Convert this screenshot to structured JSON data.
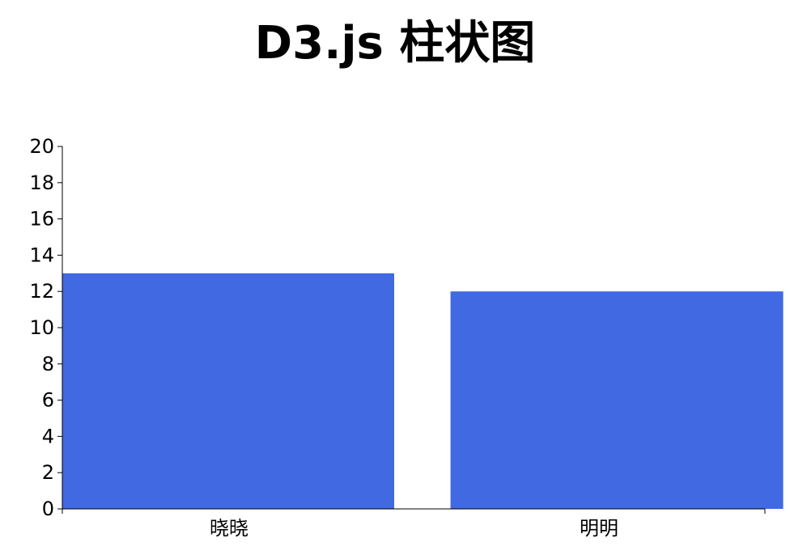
{
  "chart_data": {
    "type": "bar",
    "title": "D3.js 柱状图",
    "categories": [
      "晓晓",
      "明明"
    ],
    "values": [
      13,
      12
    ],
    "ylim": [
      0,
      20
    ],
    "yticks": [
      0,
      2,
      4,
      6,
      8,
      10,
      12,
      14,
      16,
      18,
      20
    ],
    "xlabel": "",
    "ylabel": "",
    "grid": false,
    "bar_color": "#4169E1"
  }
}
